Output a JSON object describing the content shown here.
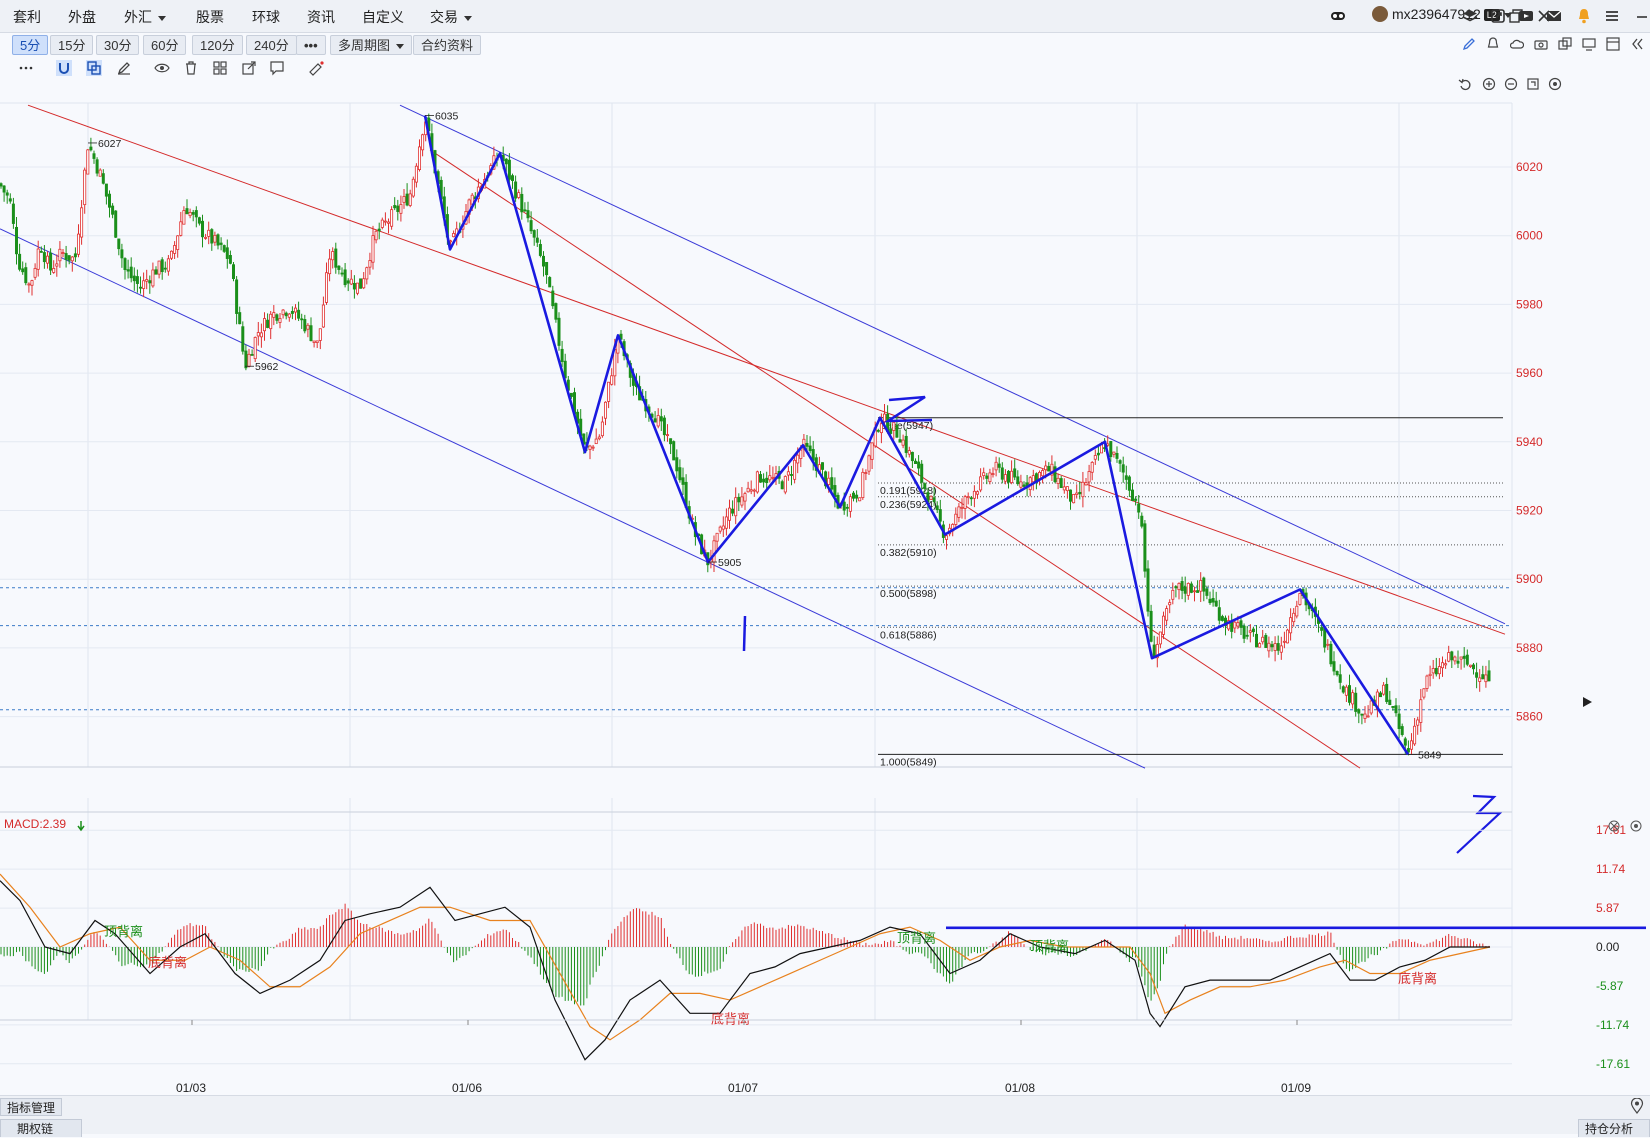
{
  "menu": {
    "items": [
      "套利",
      "外盘",
      "外汇",
      "股票",
      "环球",
      "资讯",
      "自定义",
      "交易"
    ],
    "username": "mx239647912",
    "badge": "L2"
  },
  "toolbar": {
    "periods": [
      "5分",
      "15分",
      "30分",
      "60分",
      "120分",
      "240分",
      "•••",
      "多周期图",
      "合约资料"
    ],
    "active_period": "5分"
  },
  "bottom": {
    "indicator_manager": "指标管理",
    "tab_left": "期权链",
    "tab_right": "持仓分析"
  },
  "colors": {
    "up": "#e03030",
    "down": "#1b8f1b",
    "channel_red": "#d42a2a",
    "channel_blue": "#3a3ad8",
    "hand_drawn": "#1a1ae0",
    "dif": "#111111",
    "dea": "#e8821e"
  },
  "chart_data": {
    "type": "candlestick",
    "x_labels": [
      "01/03",
      "01/06",
      "01/07",
      "01/08",
      "01/09"
    ],
    "y_ticks": [
      6020,
      6000,
      5980,
      5960,
      5940,
      5920,
      5900,
      5880,
      5860
    ],
    "ylim": [
      5844,
      6039
    ],
    "price_path": [
      [
        0,
        6015
      ],
      [
        10,
        6010
      ],
      [
        18,
        5993
      ],
      [
        30,
        5985
      ],
      [
        40,
        5998
      ],
      [
        50,
        5990
      ],
      [
        62,
        5995
      ],
      [
        75,
        5993
      ],
      [
        88,
        6027
      ],
      [
        100,
        6018
      ],
      [
        112,
        6006
      ],
      [
        125,
        5990
      ],
      [
        140,
        5985
      ],
      [
        155,
        5990
      ],
      [
        170,
        5992
      ],
      [
        185,
        6009
      ],
      [
        200,
        6002
      ],
      [
        215,
        5998
      ],
      [
        230,
        5993
      ],
      [
        245,
        5962
      ],
      [
        258,
        5972
      ],
      [
        272,
        5977
      ],
      [
        290,
        5979
      ],
      [
        305,
        5974
      ],
      [
        318,
        5968
      ],
      [
        330,
        5995
      ],
      [
        345,
        5988
      ],
      [
        360,
        5985
      ],
      [
        375,
        6000
      ],
      [
        390,
        6005
      ],
      [
        410,
        6012
      ],
      [
        425,
        6035
      ],
      [
        450,
        5996
      ],
      [
        470,
        6010
      ],
      [
        500,
        6024
      ],
      [
        520,
        6010
      ],
      [
        545,
        5990
      ],
      [
        565,
        5960
      ],
      [
        585,
        5937
      ],
      [
        600,
        5942
      ],
      [
        618,
        5971
      ],
      [
        635,
        5955
      ],
      [
        655,
        5948
      ],
      [
        675,
        5935
      ],
      [
        695,
        5913
      ],
      [
        708,
        5905
      ],
      [
        730,
        5920
      ],
      [
        760,
        5930
      ],
      [
        785,
        5928
      ],
      [
        803,
        5939
      ],
      [
        820,
        5932
      ],
      [
        840,
        5921
      ],
      [
        860,
        5926
      ],
      [
        880,
        5947
      ],
      [
        900,
        5942
      ],
      [
        920,
        5930
      ],
      [
        945,
        5913
      ],
      [
        970,
        5925
      ],
      [
        995,
        5932
      ],
      [
        1020,
        5928
      ],
      [
        1050,
        5932
      ],
      [
        1075,
        5922
      ],
      [
        1105,
        5940
      ],
      [
        1125,
        5930
      ],
      [
        1140,
        5920
      ],
      [
        1152,
        5877
      ],
      [
        1175,
        5897
      ],
      [
        1200,
        5898
      ],
      [
        1225,
        5888
      ],
      [
        1250,
        5883
      ],
      [
        1280,
        5880
      ],
      [
        1300,
        5897
      ],
      [
        1320,
        5885
      ],
      [
        1345,
        5868
      ],
      [
        1365,
        5860
      ],
      [
        1385,
        5868
      ],
      [
        1408,
        5849
      ],
      [
        1425,
        5870
      ],
      [
        1450,
        5877
      ],
      [
        1470,
        5875
      ],
      [
        1492,
        5870
      ]
    ],
    "price_labels": [
      {
        "text": "6027",
        "value": 6027
      },
      {
        "text": "5962",
        "value": 5962
      },
      {
        "text": "6035",
        "value": 6035
      },
      {
        "text": "5905",
        "value": 5905
      },
      {
        "text": "5849",
        "value": 5849
      }
    ],
    "fibonacci": [
      {
        "label": "base(5947)",
        "value": 5947
      },
      {
        "label": "0.191(5928)",
        "value": 5928
      },
      {
        "label": "0.236(5924)",
        "value": 5924
      },
      {
        "label": "0.382(5910)",
        "value": 5910
      },
      {
        "label": "0.500(5898)",
        "value": 5898
      },
      {
        "label": "0.618(5886)",
        "value": 5886
      },
      {
        "label": "1.000(5849)",
        "value": 5849
      }
    ],
    "dashed_levels": [
      5897.5,
      5886.5,
      5862
    ],
    "wave_points": [
      [
        425,
        6035
      ],
      [
        450,
        5996
      ],
      [
        500,
        6024
      ],
      [
        585,
        5937
      ],
      [
        618,
        5971
      ],
      [
        708,
        5905
      ],
      [
        803,
        5939
      ],
      [
        840,
        5921
      ],
      [
        880,
        5947
      ],
      [
        945,
        5913
      ],
      [
        1105,
        5940
      ],
      [
        1152,
        5877
      ],
      [
        1300,
        5897
      ],
      [
        1408,
        5849
      ]
    ],
    "channel_lines": [
      {
        "color": "red",
        "from": [
          28,
          6038
        ],
        "to": [
          1505,
          5884
        ]
      },
      {
        "color": "red",
        "from": [
          430,
          6025
        ],
        "to": [
          1360,
          5845
        ]
      },
      {
        "color": "blue",
        "from": [
          400,
          6038
        ],
        "to": [
          1505,
          5887
        ]
      },
      {
        "color": "blue",
        "from": [
          0,
          6002
        ],
        "to": [
          1145,
          5845
        ]
      }
    ],
    "macd": {
      "label": "MACD:2.39",
      "y_ticks": [
        17.61,
        11.74,
        5.87,
        0.0,
        -5.87,
        -11.74,
        -17.61
      ],
      "ylim": [
        -17.61,
        17.61
      ],
      "dif": [
        [
          0,
          10
        ],
        [
          20,
          7
        ],
        [
          45,
          0
        ],
        [
          70,
          -1
        ],
        [
          95,
          4
        ],
        [
          115,
          2
        ],
        [
          150,
          -4
        ],
        [
          180,
          0
        ],
        [
          205,
          2
        ],
        [
          235,
          -4
        ],
        [
          260,
          -7
        ],
        [
          290,
          -5
        ],
        [
          320,
          -2
        ],
        [
          345,
          4
        ],
        [
          370,
          5
        ],
        [
          400,
          6
        ],
        [
          430,
          9
        ],
        [
          455,
          4
        ],
        [
          480,
          5
        ],
        [
          505,
          6
        ],
        [
          530,
          3
        ],
        [
          555,
          -8
        ],
        [
          585,
          -17
        ],
        [
          605,
          -14
        ],
        [
          630,
          -8
        ],
        [
          660,
          -5
        ],
        [
          690,
          -10
        ],
        [
          720,
          -10
        ],
        [
          750,
          -4
        ],
        [
          775,
          -3
        ],
        [
          800,
          -1
        ],
        [
          830,
          0
        ],
        [
          860,
          1
        ],
        [
          890,
          3
        ],
        [
          920,
          2
        ],
        [
          950,
          -4
        ],
        [
          980,
          -2
        ],
        [
          1010,
          2
        ],
        [
          1040,
          0
        ],
        [
          1075,
          -1
        ],
        [
          1105,
          1
        ],
        [
          1135,
          -2
        ],
        [
          1150,
          -10
        ],
        [
          1160,
          -12
        ],
        [
          1185,
          -6
        ],
        [
          1210,
          -5
        ],
        [
          1240,
          -5
        ],
        [
          1270,
          -5
        ],
        [
          1300,
          -3
        ],
        [
          1330,
          -1
        ],
        [
          1350,
          -5
        ],
        [
          1375,
          -5
        ],
        [
          1400,
          -3
        ],
        [
          1425,
          -2
        ],
        [
          1450,
          0
        ],
        [
          1475,
          0
        ],
        [
          1490,
          0
        ]
      ],
      "dea": [
        [
          0,
          11
        ],
        [
          30,
          6
        ],
        [
          60,
          0
        ],
        [
          90,
          2
        ],
        [
          120,
          3
        ],
        [
          150,
          -2
        ],
        [
          185,
          -2
        ],
        [
          210,
          0
        ],
        [
          240,
          -2
        ],
        [
          270,
          -6
        ],
        [
          300,
          -6
        ],
        [
          330,
          -3
        ],
        [
          360,
          2
        ],
        [
          390,
          4
        ],
        [
          420,
          6
        ],
        [
          450,
          6
        ],
        [
          490,
          4
        ],
        [
          530,
          4
        ],
        [
          560,
          -4
        ],
        [
          590,
          -12
        ],
        [
          610,
          -14
        ],
        [
          640,
          -11
        ],
        [
          670,
          -7
        ],
        [
          700,
          -7
        ],
        [
          730,
          -8
        ],
        [
          760,
          -6
        ],
        [
          790,
          -4
        ],
        [
          820,
          -2
        ],
        [
          850,
          0
        ],
        [
          880,
          2
        ],
        [
          910,
          3
        ],
        [
          940,
          1
        ],
        [
          970,
          -2
        ],
        [
          1000,
          0
        ],
        [
          1030,
          1
        ],
        [
          1065,
          0
        ],
        [
          1100,
          0
        ],
        [
          1130,
          0
        ],
        [
          1150,
          -4
        ],
        [
          1165,
          -10
        ],
        [
          1190,
          -8
        ],
        [
          1220,
          -6
        ],
        [
          1250,
          -6
        ],
        [
          1285,
          -5
        ],
        [
          1320,
          -3
        ],
        [
          1345,
          -2
        ],
        [
          1370,
          -4
        ],
        [
          1400,
          -4
        ],
        [
          1430,
          -2
        ],
        [
          1460,
          -1
        ],
        [
          1490,
          0
        ]
      ],
      "annotations": [
        {
          "text": "顶背离",
          "x": 104,
          "y": 2.4,
          "color": "green"
        },
        {
          "text": "底背离",
          "x": 148,
          "y": -2.3,
          "color": "red"
        },
        {
          "text": "底背离",
          "x": 711,
          "y": -10.8,
          "color": "red"
        },
        {
          "text": "顶背离",
          "x": 897,
          "y": 1.4,
          "color": "green"
        },
        {
          "text": "顶背离",
          "x": 1030,
          "y": 0.2,
          "color": "green"
        },
        {
          "text": "底背离",
          "x": 1398,
          "y": -4.7,
          "color": "red"
        }
      ],
      "hand_line_value": 2.9
    }
  }
}
